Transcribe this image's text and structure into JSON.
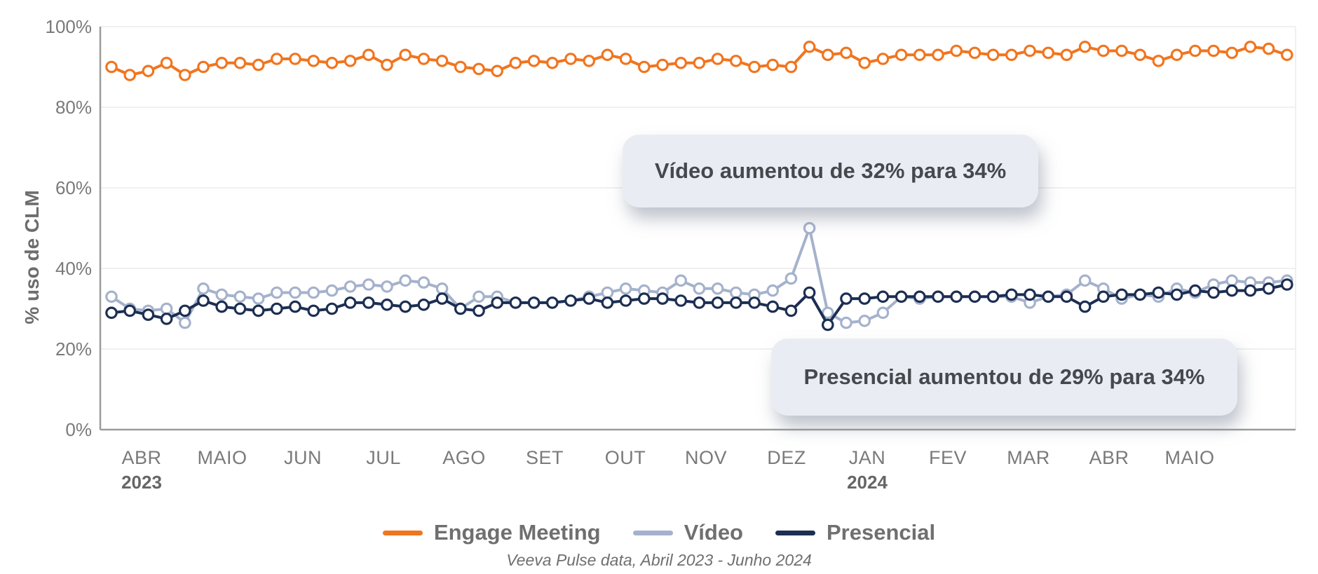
{
  "chart_data": {
    "type": "line",
    "title": "",
    "xlabel": "",
    "ylabel": "% uso de CLM",
    "ylim": [
      0,
      100
    ],
    "grid": true,
    "legend_position": "bottom",
    "yticks": [
      {
        "value": 0,
        "label": "0%"
      },
      {
        "value": 20,
        "label": "20%"
      },
      {
        "value": 40,
        "label": "40%"
      },
      {
        "value": 60,
        "label": "60%"
      },
      {
        "value": 80,
        "label": "80%"
      },
      {
        "value": 100,
        "label": "100%"
      }
    ],
    "months": [
      {
        "label": "ABR",
        "year": "2023"
      },
      {
        "label": "MAIO"
      },
      {
        "label": "JUN"
      },
      {
        "label": "JUL"
      },
      {
        "label": "AGO"
      },
      {
        "label": "SET"
      },
      {
        "label": "OUT"
      },
      {
        "label": "NOV"
      },
      {
        "label": "DEZ"
      },
      {
        "label": "JAN",
        "year": "2024"
      },
      {
        "label": "FEV"
      },
      {
        "label": "MAR"
      },
      {
        "label": "ABR"
      },
      {
        "label": "MAIO"
      }
    ],
    "series": [
      {
        "id": "engage-meeting",
        "name": "Engage Meeting",
        "color": "#F1751F",
        "values": [
          90,
          88,
          89,
          91,
          88,
          90,
          91,
          91,
          90.5,
          92,
          92,
          91.5,
          91,
          91.5,
          93,
          90.5,
          93,
          92,
          91.5,
          90,
          89.5,
          89,
          91,
          91.5,
          91,
          92,
          91.5,
          93,
          92,
          90,
          90.5,
          91,
          91,
          92,
          91.5,
          90,
          90.5,
          90,
          95,
          93,
          93.5,
          91,
          92,
          93,
          93,
          93,
          94,
          93.5,
          93,
          93,
          94,
          93.5,
          93,
          95,
          94,
          94,
          93,
          91.5,
          93,
          94,
          94,
          93.5,
          95,
          94.5,
          93
        ]
      },
      {
        "id": "video",
        "name": "Vídeo",
        "color": "#A5B2CC",
        "values": [
          33,
          30,
          29.5,
          30,
          26.5,
          35,
          33.5,
          33,
          32.5,
          34,
          34,
          34,
          34.5,
          35.5,
          36,
          35.5,
          37,
          36.5,
          35,
          30,
          33,
          33,
          31.5,
          31.5,
          31.5,
          32,
          33,
          34,
          35,
          34.5,
          34,
          37,
          35,
          35,
          34,
          33.5,
          34.5,
          37.5,
          50,
          29,
          26.5,
          27,
          29,
          33,
          32.5,
          33,
          33,
          33,
          33,
          33,
          31.5,
          33,
          33.5,
          37,
          35,
          32.5,
          33.5,
          33,
          35,
          34,
          36,
          37,
          36.5,
          36.5,
          37
        ]
      },
      {
        "id": "presencial",
        "name": "Presencial",
        "color": "#1C2E52",
        "values": [
          29,
          29.5,
          28.5,
          27.5,
          29.5,
          32,
          30.5,
          30,
          29.5,
          30,
          30.5,
          29.5,
          30,
          31.5,
          31.5,
          31,
          30.5,
          31,
          32.5,
          30,
          29.5,
          31.5,
          31.5,
          31.5,
          31.5,
          32,
          32.5,
          31.5,
          32,
          32.5,
          32.5,
          32,
          31.5,
          31.5,
          31.5,
          31.5,
          30.5,
          29.5,
          34,
          26,
          32.5,
          32.5,
          33,
          33,
          33,
          33,
          33,
          33,
          33,
          33.5,
          33.5,
          33,
          33,
          30.5,
          33,
          33.5,
          33.5,
          34,
          33.5,
          34.5,
          34,
          34.5,
          34.5,
          35,
          36
        ]
      }
    ]
  },
  "annotations": {
    "video_callout": "Vídeo aumentou de 32% para 34%",
    "presencial_callout": "Presencial aumentou de 29% para 34%"
  },
  "footer": {
    "source": "Veeva Pulse data, Abril 2023 - Junho 2024"
  }
}
